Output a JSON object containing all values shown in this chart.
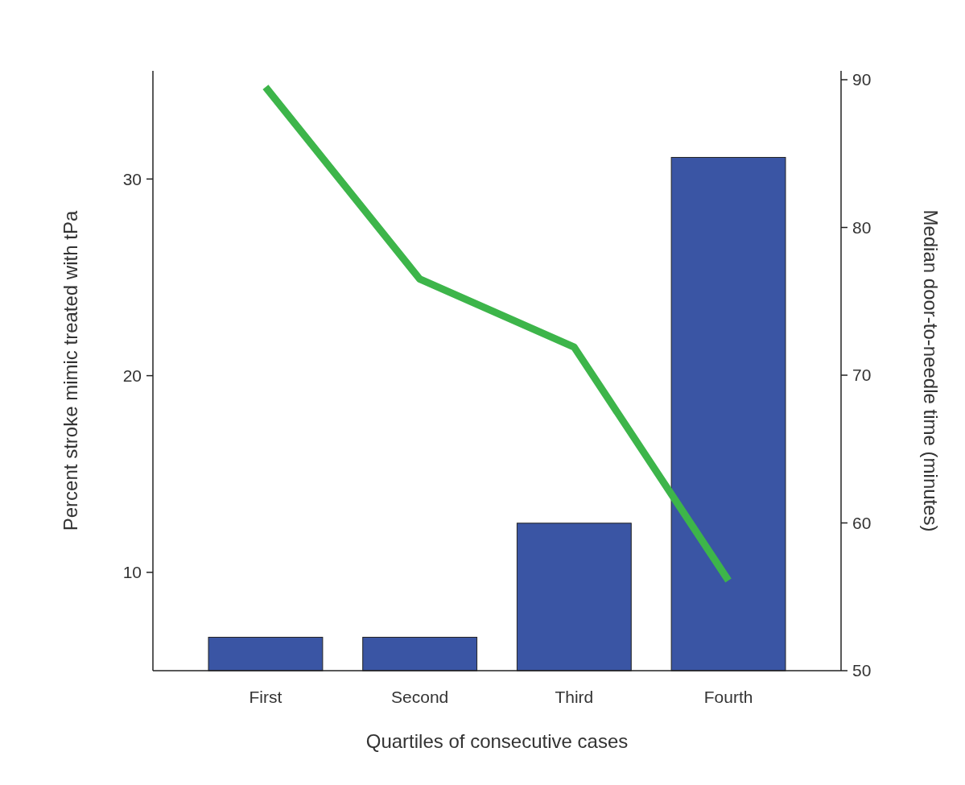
{
  "chart_data": {
    "type": "bar",
    "xlabel": "Quartiles of consecutive cases",
    "ylabel": "Percent stroke mimic treated with tPa",
    "y2label": "Median door-to-needle time (minutes)",
    "categories": [
      "First",
      "Second",
      "Third",
      "Fourth"
    ],
    "series": [
      {
        "color": "#3a55a4",
        "values": [
          6.7,
          6.7,
          12.5,
          31.1
        ]
      },
      {
        "type": "line",
        "axis": "y2",
        "color": "#3db54a",
        "values": [
          89.5,
          76.5,
          71.9,
          56.1
        ]
      }
    ],
    "ylim": [
      5,
      35.5
    ],
    "yticks": [
      10,
      20,
      30
    ],
    "y2lim": [
      50,
      90.6
    ],
    "y2ticks": [
      50,
      60,
      70,
      80,
      90
    ],
    "grid": false
  }
}
